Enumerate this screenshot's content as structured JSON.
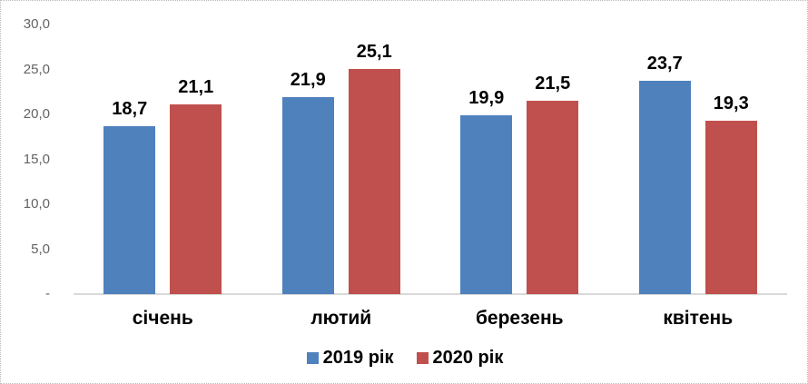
{
  "chart_data": {
    "type": "bar",
    "categories": [
      "січень",
      "лютий",
      "березень",
      "квітень"
    ],
    "series": [
      {
        "name": "2019 рік",
        "color": "#4F81BD",
        "values": [
          18.7,
          21.9,
          19.9,
          23.7
        ],
        "labels": [
          "18,7",
          "21,9",
          "19,9",
          "23,7"
        ]
      },
      {
        "name": "2020 рік",
        "color": "#C0504D",
        "values": [
          21.1,
          25.1,
          21.5,
          19.3
        ],
        "labels": [
          "21,1",
          "25,1",
          "21,5",
          "19,3"
        ]
      }
    ],
    "y_axis": {
      "ticks": [
        {
          "label": "30,0",
          "value": 30
        },
        {
          "label": "25,0",
          "value": 25
        },
        {
          "label": "20,0",
          "value": 20
        },
        {
          "label": "15,0",
          "value": 15
        },
        {
          "label": "10,0",
          "value": 10
        },
        {
          "label": "5,0",
          "value": 5
        },
        {
          "label": "-",
          "value": 0
        }
      ],
      "min": 0,
      "max": 30
    },
    "legend": [
      {
        "label": "2019 рік",
        "color": "#4F81BD"
      },
      {
        "label": "2020 рік",
        "color": "#C0504D"
      }
    ],
    "grid": false,
    "legend_position": "bottom",
    "title": "",
    "xlabel": "",
    "ylabel": ""
  },
  "colors": {
    "axis_line": "#d9d9d9",
    "tick_text": "#636363",
    "data_label_text": "#000000",
    "frame_border": "#b9b9b9",
    "background": "#ffffff"
  }
}
